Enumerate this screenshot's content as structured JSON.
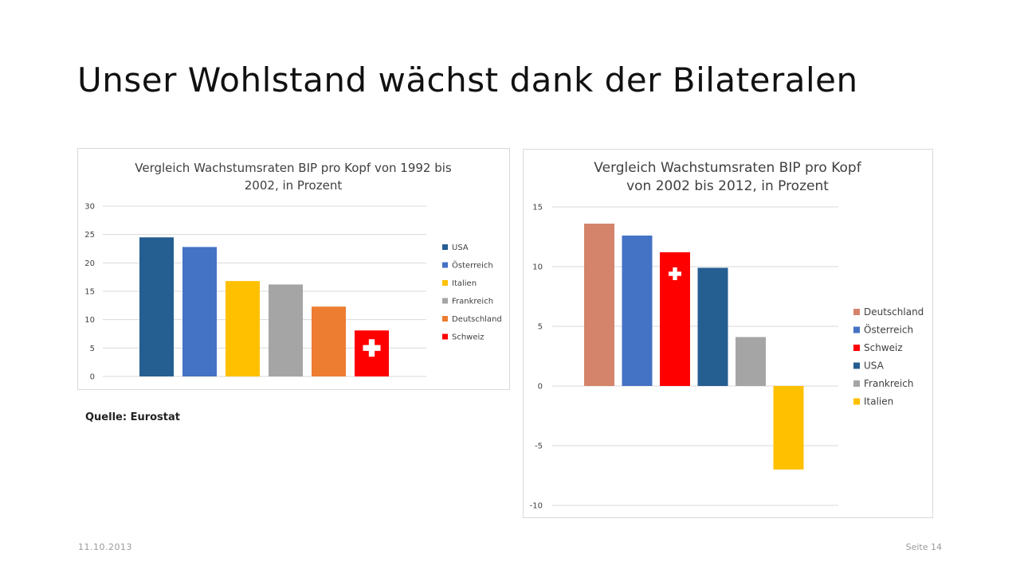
{
  "slide": {
    "title": "Unser Wohlstand wächst dank der Bilateralen",
    "source": "Quelle: Eurostat",
    "date": "11.10.2013",
    "page": "Seite 14"
  },
  "colors": {
    "usa": "#255e91",
    "oesterreich": "#4472c4",
    "italien": "#ffc000",
    "frankreich": "#a5a5a5",
    "deutschland_orange": "#ed7d31",
    "deutschland_salmon": "#d4846a",
    "schweiz": "#ff0000",
    "swiss_cross": "#ffffff"
  },
  "chart_data": [
    {
      "type": "bar",
      "title_lines": [
        "Vergleich Wachstumsraten BIP pro Kopf von 1992 bis",
        "2002, in Prozent"
      ],
      "categories": [
        "USA",
        "Österreich",
        "Italien",
        "Frankreich",
        "Deutschland",
        "Schweiz"
      ],
      "values": [
        24.5,
        22.8,
        16.8,
        16.2,
        12.3,
        8.1
      ],
      "bar_colors": [
        "#255e91",
        "#4472c4",
        "#ffc000",
        "#a5a5a5",
        "#ed7d31",
        "#ff0000"
      ],
      "ylim": [
        0,
        30
      ],
      "yticks": [
        0,
        5,
        10,
        15,
        20,
        25,
        30
      ],
      "grid": true,
      "legend_position": "right",
      "legend": [
        "USA",
        "Österreich",
        "Italien",
        "Frankreich",
        "Deutschland",
        "Schweiz"
      ],
      "swiss_cross_on": "Schweiz"
    },
    {
      "type": "bar",
      "title_lines": [
        "Vergleich Wachstumsraten BIP pro Kopf",
        "von 2002 bis 2012, in Prozent"
      ],
      "categories": [
        "Deutschland",
        "Österreich",
        "Schweiz",
        "USA",
        "Frankreich",
        "Italien"
      ],
      "values": [
        13.6,
        12.6,
        11.2,
        9.9,
        4.1,
        -7.0
      ],
      "bar_colors": [
        "#d4846a",
        "#4472c4",
        "#ff0000",
        "#255e91",
        "#a5a5a5",
        "#ffc000"
      ],
      "ylim": [
        -10,
        15
      ],
      "yticks": [
        -10,
        -5,
        0,
        5,
        10,
        15
      ],
      "grid": true,
      "legend_position": "right",
      "legend": [
        "Deutschland",
        "Österreich",
        "Schweiz",
        "USA",
        "Frankreich",
        "Italien"
      ],
      "swiss_cross_on": "Schweiz"
    }
  ]
}
